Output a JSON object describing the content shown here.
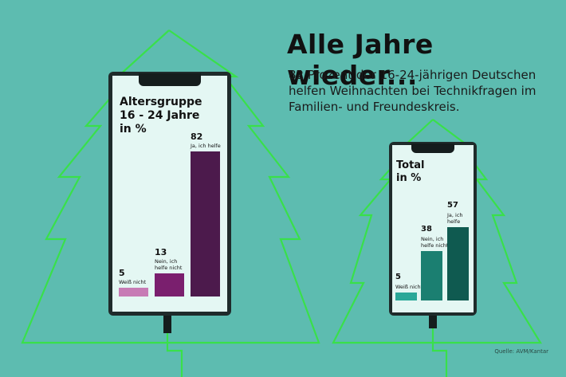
{
  "headline": "Alle Jahre wieder...",
  "subtext": "82 Prozent der 16-24-jährigen Deutschen helfen Weihnachten bei Technikfragen im Familien- und Freundeskreis.",
  "source": "Quelle: AVM/Kantar",
  "colors": {
    "background": "#5dbcb0",
    "tree_outline": "#39e04a",
    "age_weiss_nicht": "#c77bb5",
    "age_nein": "#7a1f6e",
    "age_ja": "#4c1a4c",
    "total_weiss_nicht": "#2aa898",
    "total_nein": "#1b7f71",
    "total_ja": "#0f5a50"
  },
  "chart_data": [
    {
      "type": "bar",
      "title": "Altersgruppe 16 - 24 Jahre in %",
      "title_lines": [
        "Altersgruppe",
        "16 - 24 Jahre",
        "in %"
      ],
      "categories": [
        "Weiß nicht",
        "Nein, ich helfe nicht",
        "Ja, ich helfe"
      ],
      "category_lines": [
        [
          "Weiß nicht"
        ],
        [
          "Nein, ich",
          "helfe nicht"
        ],
        [
          "Ja, ich helfe"
        ]
      ],
      "values": [
        5,
        13,
        82
      ]
    },
    {
      "type": "bar",
      "title": "Total in %",
      "title_lines": [
        "Total",
        "in %"
      ],
      "categories": [
        "Weiß nicht",
        "Nein, ich helfe nicht",
        "Ja, ich helfe"
      ],
      "category_lines": [
        [
          "Weiß nicht"
        ],
        [
          "Nein, ich",
          "helfe nicht"
        ],
        [
          "Ja, ich",
          "helfe"
        ]
      ],
      "values": [
        5,
        38,
        57
      ]
    }
  ]
}
